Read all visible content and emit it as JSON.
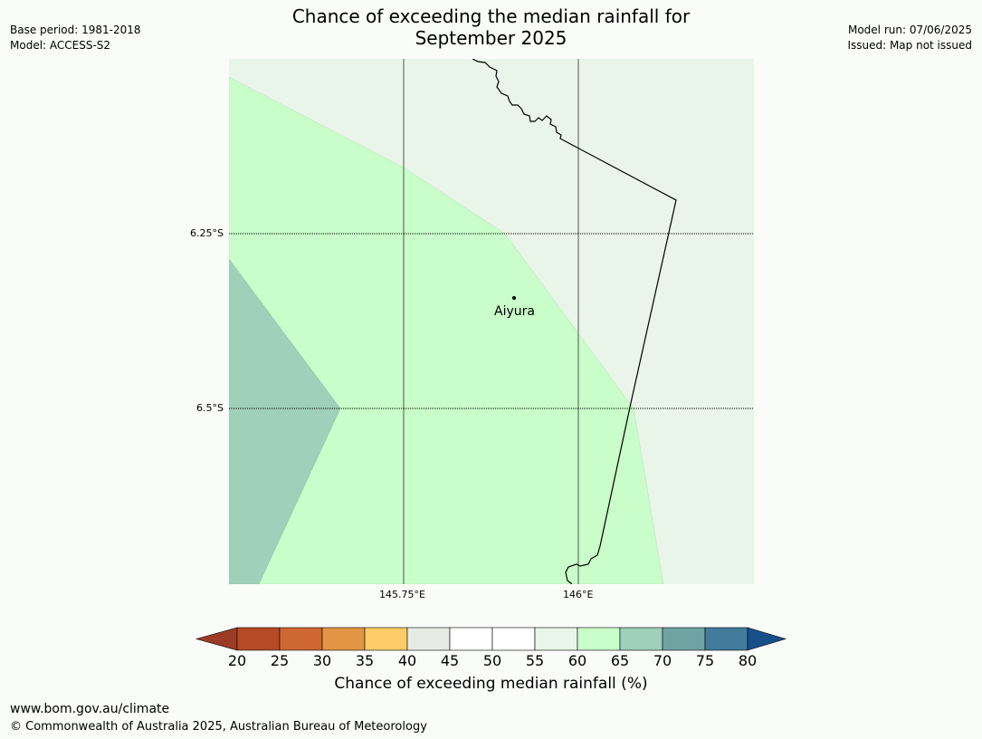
{
  "header": {
    "title_line1": "Chance of exceeding the median rainfall for",
    "title_line2": "September 2025",
    "base_period": "Base period: 1981-2018",
    "model": "Model: ACCESS-S2",
    "model_run": "Model run: 07/06/2025",
    "issued": "Issued: Map not issued"
  },
  "map": {
    "lat_labels": [
      "6.25°S",
      "6.5°S"
    ],
    "lon_labels": [
      "145.75°E",
      "146°E"
    ],
    "places": [
      {
        "name": "Aiyura"
      }
    ],
    "colors": {
      "band_55_60": "#e9f5e9",
      "band_60_65": "#c9fdc9",
      "band_65_70": "#9ed0ba",
      "gridline": "#555555",
      "border": "#000000"
    }
  },
  "colorbar": {
    "title": "Chance of exceeding median rainfall (%)",
    "ticks": [
      "20",
      "25",
      "30",
      "35",
      "40",
      "45",
      "50",
      "55",
      "60",
      "65",
      "70",
      "75",
      "80"
    ],
    "under_color": "#9d3b26",
    "over_color": "#175089",
    "colors": [
      "#b64a26",
      "#cf6732",
      "#e39545",
      "#fdcc66",
      "#e8ebe5",
      "#ffffff",
      "#ffffff",
      "#e9f5e9",
      "#c9fdc9",
      "#9ed0ba",
      "#6fa3a4",
      "#437b9c"
    ]
  },
  "footer": {
    "url": "www.bom.gov.au/climate",
    "copyright": "© Commonwealth of Australia 2025, Australian Bureau of Meteorology"
  }
}
